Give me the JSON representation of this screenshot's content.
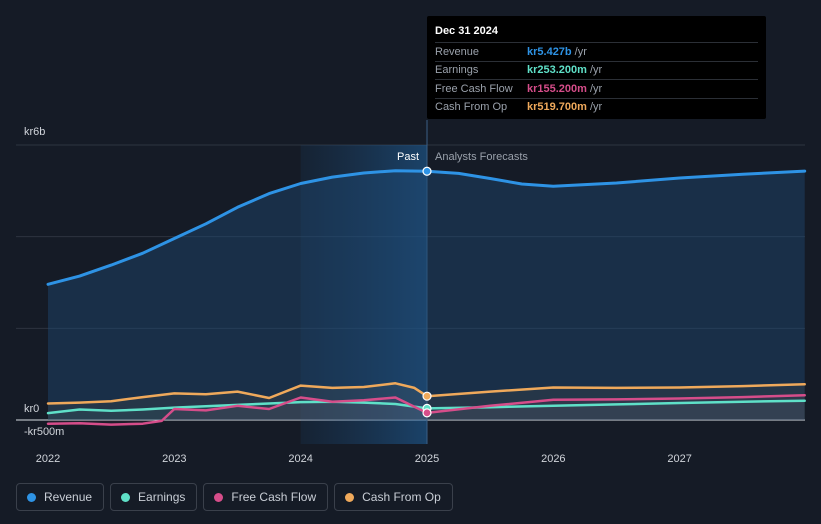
{
  "chart_data": {
    "type": "line",
    "x_unit": "year",
    "xlim": [
      2021.9,
      2027.99
    ],
    "ylim": [
      -500,
      6000
    ],
    "y_axis_labels": [
      "kr6b",
      "kr0",
      "-kr500m"
    ],
    "x_ticks": [
      {
        "x": 2022,
        "label": "2022"
      },
      {
        "x": 2023,
        "label": "2023"
      },
      {
        "x": 2024,
        "label": "2024"
      },
      {
        "x": 2025,
        "label": "2025"
      },
      {
        "x": 2026,
        "label": "2026"
      },
      {
        "x": 2027,
        "label": "2027"
      }
    ],
    "gridlines_y": [
      6000,
      4000,
      2000,
      0
    ],
    "past_region": [
      2024.0,
      2025.0
    ],
    "divider_x": 2025.0,
    "past_label": "Past",
    "forecast_label": "Analysts Forecasts",
    "series": [
      {
        "name": "Revenue",
        "key": "revenue",
        "color": "#2e93e5",
        "fill": true,
        "points": [
          [
            2022.0,
            2960
          ],
          [
            2022.25,
            3140
          ],
          [
            2022.5,
            3380
          ],
          [
            2022.75,
            3640
          ],
          [
            2023.0,
            3960
          ],
          [
            2023.25,
            4280
          ],
          [
            2023.5,
            4640
          ],
          [
            2023.75,
            4940
          ],
          [
            2024.0,
            5160
          ],
          [
            2024.25,
            5300
          ],
          [
            2024.5,
            5390
          ],
          [
            2024.75,
            5440
          ],
          [
            2025.0,
            5427
          ],
          [
            2025.25,
            5380
          ],
          [
            2025.5,
            5270
          ],
          [
            2025.75,
            5150
          ],
          [
            2026.0,
            5100
          ],
          [
            2026.5,
            5170
          ],
          [
            2027.0,
            5280
          ],
          [
            2027.5,
            5360
          ],
          [
            2027.99,
            5430
          ]
        ]
      },
      {
        "name": "Earnings",
        "key": "earnings",
        "color": "#5fe0c8",
        "fill": false,
        "points": [
          [
            2022.0,
            150
          ],
          [
            2022.25,
            230
          ],
          [
            2022.5,
            200
          ],
          [
            2022.75,
            230
          ],
          [
            2023.0,
            270
          ],
          [
            2023.25,
            300
          ],
          [
            2023.5,
            330
          ],
          [
            2023.75,
            360
          ],
          [
            2024.0,
            390
          ],
          [
            2024.25,
            400
          ],
          [
            2024.5,
            380
          ],
          [
            2024.75,
            350
          ],
          [
            2025.0,
            253
          ],
          [
            2025.5,
            280
          ],
          [
            2026.0,
            310
          ],
          [
            2026.5,
            340
          ],
          [
            2027.0,
            370
          ],
          [
            2027.5,
            400
          ],
          [
            2027.99,
            420
          ]
        ]
      },
      {
        "name": "Free Cash Flow",
        "key": "fcf",
        "color": "#d64d8a",
        "fill": false,
        "points": [
          [
            2022.0,
            -80
          ],
          [
            2022.25,
            -70
          ],
          [
            2022.5,
            -100
          ],
          [
            2022.75,
            -80
          ],
          [
            2022.9,
            -20
          ],
          [
            2023.0,
            240
          ],
          [
            2023.25,
            210
          ],
          [
            2023.5,
            310
          ],
          [
            2023.75,
            240
          ],
          [
            2024.0,
            490
          ],
          [
            2024.25,
            400
          ],
          [
            2024.5,
            430
          ],
          [
            2024.75,
            490
          ],
          [
            2025.0,
            155
          ],
          [
            2025.5,
            310
          ],
          [
            2026.0,
            440
          ],
          [
            2026.5,
            450
          ],
          [
            2027.0,
            470
          ],
          [
            2027.5,
            500
          ],
          [
            2027.99,
            540
          ]
        ]
      },
      {
        "name": "Cash From Op",
        "key": "cfo",
        "color": "#efa95b",
        "fill": false,
        "points": [
          [
            2022.0,
            360
          ],
          [
            2022.25,
            380
          ],
          [
            2022.5,
            410
          ],
          [
            2022.75,
            500
          ],
          [
            2023.0,
            580
          ],
          [
            2023.25,
            560
          ],
          [
            2023.5,
            620
          ],
          [
            2023.75,
            480
          ],
          [
            2024.0,
            750
          ],
          [
            2024.25,
            700
          ],
          [
            2024.5,
            720
          ],
          [
            2024.75,
            800
          ],
          [
            2024.9,
            700
          ],
          [
            2025.0,
            520
          ],
          [
            2025.5,
            620
          ],
          [
            2026.0,
            710
          ],
          [
            2026.5,
            700
          ],
          [
            2027.0,
            710
          ],
          [
            2027.5,
            740
          ],
          [
            2027.99,
            780
          ]
        ]
      }
    ]
  },
  "tooltip": {
    "date": "Dec 31 2024",
    "rows": [
      {
        "label": "Revenue",
        "value": "kr5.427b",
        "unit": "/yr",
        "color": "#2e93e5"
      },
      {
        "label": "Earnings",
        "value": "kr253.200m",
        "unit": "/yr",
        "color": "#5fe0c8"
      },
      {
        "label": "Free Cash Flow",
        "value": "kr155.200m",
        "unit": "/yr",
        "color": "#d64d8a"
      },
      {
        "label": "Cash From Op",
        "value": "kr519.700m",
        "unit": "/yr",
        "color": "#efa95b"
      }
    ]
  },
  "legend": [
    {
      "label": "Revenue",
      "color": "#2e93e5"
    },
    {
      "label": "Earnings",
      "color": "#5fe0c8"
    },
    {
      "label": "Free Cash Flow",
      "color": "#d64d8a"
    },
    {
      "label": "Cash From Op",
      "color": "#efa95b"
    }
  ]
}
